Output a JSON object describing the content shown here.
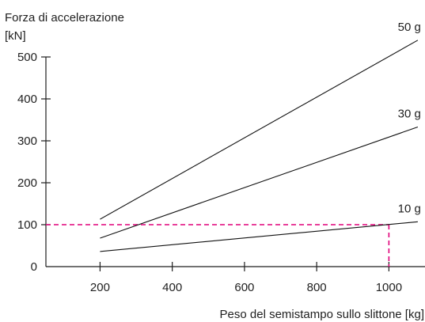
{
  "chart_data": {
    "type": "line",
    "ylabel_line1": "Forza di accelerazione",
    "ylabel_line2": "[kN]",
    "xlabel": "Peso del semistampo sullo slittone [kg]",
    "xlim": [
      50,
      1100
    ],
    "ylim": [
      0,
      520
    ],
    "x_ticks": [
      200,
      400,
      600,
      800,
      1000
    ],
    "y_ticks": [
      0,
      100,
      200,
      300,
      400,
      500
    ],
    "grid": false,
    "series": [
      {
        "name": "50 g",
        "x": [
          200,
          1080
        ],
        "y": [
          113,
          540
        ]
      },
      {
        "name": "30 g",
        "x": [
          200,
          1080
        ],
        "y": [
          68,
          333
        ]
      },
      {
        "name": "10 g",
        "x": [
          200,
          1080
        ],
        "y": [
          36,
          107
        ]
      }
    ],
    "reference": {
      "x": 1000,
      "y": 100,
      "color": "#e0007a"
    }
  }
}
